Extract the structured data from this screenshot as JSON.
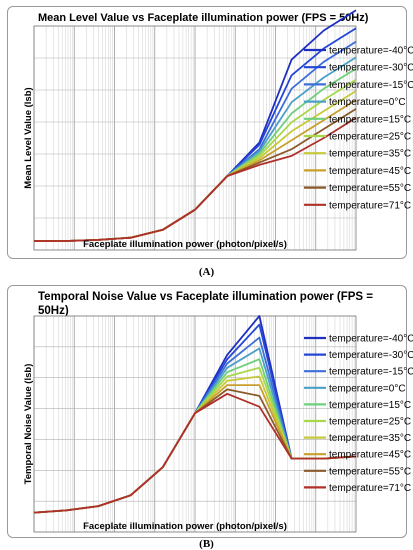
{
  "chart_data": [
    {
      "type": "line",
      "title": "Mean Level Value vs Faceplate illumination power (FPS = 50Hz)",
      "xlabel": "Faceplate illumination power (photon/pixel/s)",
      "ylabel": "Mean Level Value (lsb)",
      "xscale": "log",
      "grid": true,
      "legend_position": "right",
      "caption": "(A)",
      "series": [
        {
          "name": "temperature=-40°C",
          "color": "#1f2fbf",
          "values": [
            0.04,
            0.04,
            0.045,
            0.055,
            0.09,
            0.18,
            0.33,
            0.48,
            0.85,
            0.98,
            1.07
          ]
        },
        {
          "name": "temperature=-30°C",
          "color": "#2446d6",
          "values": [
            0.04,
            0.04,
            0.045,
            0.055,
            0.09,
            0.18,
            0.33,
            0.47,
            0.78,
            0.9,
            0.99
          ]
        },
        {
          "name": "temperature=-15°C",
          "color": "#3f6fd8",
          "values": [
            0.04,
            0.04,
            0.045,
            0.055,
            0.09,
            0.18,
            0.33,
            0.45,
            0.72,
            0.84,
            0.93
          ]
        },
        {
          "name": "temperature=0°C",
          "color": "#4aa0c8",
          "values": [
            0.04,
            0.04,
            0.045,
            0.055,
            0.09,
            0.18,
            0.33,
            0.44,
            0.66,
            0.77,
            0.86
          ]
        },
        {
          "name": "temperature=15°C",
          "color": "#6fcf7a",
          "values": [
            0.04,
            0.04,
            0.045,
            0.055,
            0.09,
            0.18,
            0.33,
            0.43,
            0.61,
            0.72,
            0.81
          ]
        },
        {
          "name": "temperature=25°C",
          "color": "#a8d84a",
          "values": [
            0.04,
            0.04,
            0.045,
            0.055,
            0.09,
            0.18,
            0.33,
            0.42,
            0.57,
            0.67,
            0.76
          ]
        },
        {
          "name": "temperature=35°C",
          "color": "#c7c93a",
          "values": [
            0.04,
            0.04,
            0.045,
            0.055,
            0.09,
            0.18,
            0.33,
            0.41,
            0.53,
            0.62,
            0.71
          ]
        },
        {
          "name": "temperature=45°C",
          "color": "#c9a02c",
          "values": [
            0.04,
            0.04,
            0.045,
            0.055,
            0.09,
            0.18,
            0.33,
            0.4,
            0.49,
            0.58,
            0.67
          ]
        },
        {
          "name": "temperature=55°C",
          "color": "#8b5a2b",
          "values": [
            0.04,
            0.04,
            0.045,
            0.055,
            0.09,
            0.18,
            0.33,
            0.39,
            0.45,
            0.54,
            0.63
          ]
        },
        {
          "name": "temperature=71°C",
          "color": "#b0302a",
          "values": [
            0.04,
            0.04,
            0.045,
            0.055,
            0.09,
            0.18,
            0.33,
            0.38,
            0.42,
            0.5,
            0.59
          ]
        }
      ]
    },
    {
      "type": "line",
      "title": "Temporal Noise Value vs Faceplate illumination power (FPS = 50Hz)",
      "xlabel": "Faceplate illumination power (photon/pixel/s)",
      "ylabel": "Temporal Noise Value (lsb)",
      "xscale": "log",
      "grid": true,
      "legend_position": "right",
      "caption": "(B)",
      "series": [
        {
          "name": "temperature=-40°C",
          "color": "#1f2fbf",
          "values": [
            0.09,
            0.1,
            0.12,
            0.17,
            0.3,
            0.55,
            0.82,
            1.0,
            0.34,
            0.34,
            0.35
          ]
        },
        {
          "name": "temperature=-30°C",
          "color": "#2446d6",
          "values": [
            0.09,
            0.1,
            0.12,
            0.17,
            0.3,
            0.55,
            0.8,
            0.96,
            0.34,
            0.34,
            0.35
          ]
        },
        {
          "name": "temperature=-15°C",
          "color": "#3f6fd8",
          "values": [
            0.09,
            0.1,
            0.12,
            0.17,
            0.3,
            0.55,
            0.78,
            0.9,
            0.34,
            0.34,
            0.35
          ]
        },
        {
          "name": "temperature=0°C",
          "color": "#4aa0c8",
          "values": [
            0.09,
            0.1,
            0.12,
            0.17,
            0.3,
            0.55,
            0.76,
            0.85,
            0.34,
            0.34,
            0.35
          ]
        },
        {
          "name": "temperature=15°C",
          "color": "#6fcf7a",
          "values": [
            0.09,
            0.1,
            0.12,
            0.17,
            0.3,
            0.55,
            0.74,
            0.8,
            0.34,
            0.34,
            0.35
          ]
        },
        {
          "name": "temperature=25°C",
          "color": "#a8d84a",
          "values": [
            0.09,
            0.1,
            0.12,
            0.17,
            0.3,
            0.55,
            0.72,
            0.76,
            0.34,
            0.34,
            0.35
          ]
        },
        {
          "name": "temperature=35°C",
          "color": "#c7c93a",
          "values": [
            0.09,
            0.1,
            0.12,
            0.17,
            0.3,
            0.55,
            0.7,
            0.72,
            0.34,
            0.34,
            0.35
          ]
        },
        {
          "name": "temperature=45°C",
          "color": "#c9a02c",
          "values": [
            0.09,
            0.1,
            0.12,
            0.17,
            0.3,
            0.55,
            0.68,
            0.68,
            0.34,
            0.34,
            0.35
          ]
        },
        {
          "name": "temperature=55°C",
          "color": "#8b5a2b",
          "values": [
            0.09,
            0.1,
            0.12,
            0.17,
            0.3,
            0.55,
            0.66,
            0.63,
            0.34,
            0.34,
            0.35
          ]
        },
        {
          "name": "temperature=71°C",
          "color": "#b0302a",
          "values": [
            0.09,
            0.1,
            0.12,
            0.17,
            0.3,
            0.55,
            0.64,
            0.58,
            0.34,
            0.34,
            0.35
          ]
        }
      ]
    }
  ]
}
